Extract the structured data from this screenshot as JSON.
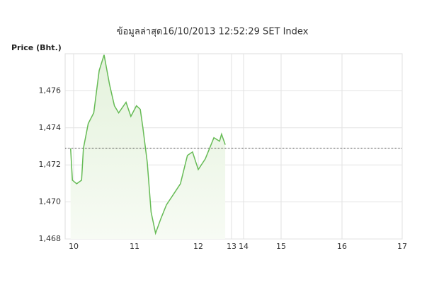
{
  "chart_data": {
    "type": "line",
    "title": "ข้อมูลล่าสุด16/10/2013 12:52:29   SET Index",
    "y_label": "Price (Bht.)",
    "x": [
      9.95,
      9.98,
      10.05,
      10.13,
      10.16,
      10.24,
      10.33,
      10.42,
      10.5,
      10.59,
      10.67,
      10.74,
      10.86,
      10.94,
      11.03,
      11.09,
      11.13,
      11.2,
      11.26,
      11.33,
      11.41,
      11.5,
      11.61,
      11.72,
      11.83,
      11.91,
      12,
      12.21,
      12.47,
      12.64,
      12.7,
      12.81
    ],
    "series": [
      {
        "name": "SET Index",
        "color": "#66bb55",
        "values": [
          1472.89,
          1471.17,
          1470.98,
          1471.17,
          1472.89,
          1474.23,
          1474.81,
          1477.1,
          1477.94,
          1476.34,
          1475.19,
          1474.81,
          1475.38,
          1474.62,
          1475.19,
          1475.0,
          1474.04,
          1472.13,
          1469.45,
          1468.31,
          1469.07,
          1469.84,
          1470.41,
          1470.98,
          1472.51,
          1472.7,
          1471.75,
          1472.32,
          1473.47,
          1473.28,
          1473.66,
          1473.09
        ]
      }
    ],
    "reference_value": 1472.9,
    "xlim": [
      9.85,
      17
    ],
    "xticks": [
      10,
      11,
      12,
      13,
      14,
      15,
      16,
      17
    ],
    "ylim": [
      1468,
      1478
    ],
    "yticks": [
      {
        "value": 1468,
        "label": "1,468"
      },
      {
        "value": 1470,
        "label": "1,470"
      },
      {
        "value": 1472,
        "label": "1,472"
      },
      {
        "value": 1474,
        "label": "1,474"
      },
      {
        "value": 1476,
        "label": "1,476"
      }
    ],
    "grid": true
  }
}
